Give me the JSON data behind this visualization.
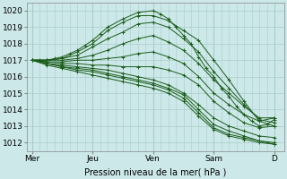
{
  "bg_color": "#cce8e8",
  "grid_major_color": "#aacccc",
  "grid_minor_color": "#bbdddd",
  "line_color": "#1a5c1a",
  "xlabel": "Pression niveau de la mer( hPa )",
  "x_ticks": [
    0,
    24,
    48,
    72,
    96
  ],
  "x_tick_labels": [
    "Mer",
    "Jeu",
    "Ven",
    "Sam",
    "D"
  ],
  "ylim": [
    1011.5,
    1020.5
  ],
  "y_ticks": [
    1012,
    1013,
    1014,
    1015,
    1016,
    1017,
    1018,
    1019,
    1020
  ],
  "xlim": [
    -2,
    100
  ],
  "series": [
    {
      "x": [
        0,
        3,
        6,
        9,
        12,
        15,
        18,
        21,
        24,
        27,
        30,
        36,
        42,
        48,
        51,
        54,
        57,
        60,
        63,
        66,
        69,
        72,
        75,
        78,
        81,
        84,
        87,
        90,
        93,
        96
      ],
      "y": [
        1017.0,
        1017.0,
        1017.0,
        1017.1,
        1017.2,
        1017.4,
        1017.6,
        1017.9,
        1018.2,
        1018.6,
        1019.0,
        1019.5,
        1019.9,
        1020.0,
        1019.8,
        1019.5,
        1019.0,
        1018.5,
        1018.0,
        1017.2,
        1016.5,
        1016.0,
        1015.3,
        1014.8,
        1014.2,
        1013.7,
        1013.3,
        1013.0,
        1013.1,
        1013.4
      ]
    },
    {
      "x": [
        0,
        6,
        12,
        18,
        24,
        30,
        36,
        42,
        48,
        54,
        60,
        66,
        72,
        78,
        84,
        90,
        96
      ],
      "y": [
        1017.0,
        1017.0,
        1017.1,
        1017.5,
        1018.0,
        1018.8,
        1019.3,
        1019.7,
        1019.7,
        1019.4,
        1018.8,
        1018.2,
        1017.0,
        1015.8,
        1014.5,
        1013.3,
        1013.0
      ]
    },
    {
      "x": [
        0,
        6,
        12,
        18,
        24,
        30,
        36,
        42,
        48,
        54,
        60,
        66,
        72,
        78,
        84,
        90,
        96
      ],
      "y": [
        1017.0,
        1017.0,
        1017.1,
        1017.3,
        1017.8,
        1018.3,
        1018.7,
        1019.2,
        1019.3,
        1019.0,
        1018.3,
        1017.5,
        1016.3,
        1015.3,
        1014.3,
        1013.4,
        1013.2
      ]
    },
    {
      "x": [
        0,
        6,
        12,
        18,
        24,
        30,
        36,
        42,
        48,
        54,
        60,
        66,
        72,
        78,
        84,
        90,
        96
      ],
      "y": [
        1017.0,
        1017.0,
        1017.0,
        1017.1,
        1017.3,
        1017.6,
        1018.0,
        1018.3,
        1018.5,
        1018.1,
        1017.6,
        1016.8,
        1015.8,
        1015.0,
        1014.2,
        1013.5,
        1013.5
      ]
    },
    {
      "x": [
        0,
        6,
        12,
        18,
        24,
        30,
        36,
        42,
        48,
        54,
        60,
        66,
        72,
        78,
        84,
        90,
        96
      ],
      "y": [
        1017.0,
        1016.9,
        1016.9,
        1017.0,
        1017.0,
        1017.1,
        1017.2,
        1017.4,
        1017.5,
        1017.2,
        1016.8,
        1016.0,
        1015.0,
        1014.3,
        1013.7,
        1013.3,
        1013.5
      ]
    },
    {
      "x": [
        0,
        6,
        12,
        18,
        24,
        30,
        36,
        42,
        48,
        54,
        60,
        66,
        72,
        78,
        84,
        90,
        96
      ],
      "y": [
        1017.0,
        1016.9,
        1016.8,
        1016.8,
        1016.7,
        1016.7,
        1016.6,
        1016.6,
        1016.6,
        1016.4,
        1016.1,
        1015.5,
        1014.5,
        1013.8,
        1013.2,
        1012.9,
        1013.0
      ]
    },
    {
      "x": [
        0,
        6,
        12,
        18,
        24,
        30,
        36,
        42,
        48,
        54,
        60,
        66,
        72,
        78,
        84,
        90,
        96
      ],
      "y": [
        1017.0,
        1016.8,
        1016.7,
        1016.6,
        1016.5,
        1016.4,
        1016.2,
        1016.0,
        1015.8,
        1015.5,
        1015.0,
        1014.3,
        1013.5,
        1013.0,
        1012.7,
        1012.4,
        1012.3
      ]
    },
    {
      "x": [
        0,
        6,
        12,
        18,
        24,
        30,
        36,
        42,
        48,
        54,
        60,
        66,
        72,
        78,
        84,
        90,
        96
      ],
      "y": [
        1017.0,
        1016.8,
        1016.6,
        1016.5,
        1016.4,
        1016.2,
        1016.0,
        1015.8,
        1015.6,
        1015.3,
        1014.9,
        1014.0,
        1013.1,
        1012.7,
        1012.4,
        1012.1,
        1012.0
      ]
    },
    {
      "x": [
        0,
        6,
        12,
        18,
        24,
        30,
        36,
        42,
        48,
        54,
        60,
        66,
        72,
        78,
        84,
        90,
        96
      ],
      "y": [
        1017.0,
        1016.8,
        1016.6,
        1016.4,
        1016.3,
        1016.1,
        1015.9,
        1015.7,
        1015.5,
        1015.2,
        1014.7,
        1013.8,
        1012.9,
        1012.5,
        1012.3,
        1012.1,
        1011.9
      ]
    },
    {
      "x": [
        0,
        6,
        12,
        18,
        24,
        30,
        36,
        42,
        48,
        54,
        60,
        66,
        72,
        78,
        84,
        90,
        96
      ],
      "y": [
        1017.0,
        1016.7,
        1016.5,
        1016.3,
        1016.1,
        1015.9,
        1015.7,
        1015.5,
        1015.3,
        1015.0,
        1014.5,
        1013.6,
        1012.8,
        1012.4,
        1012.2,
        1012.0,
        1011.9
      ]
    }
  ]
}
